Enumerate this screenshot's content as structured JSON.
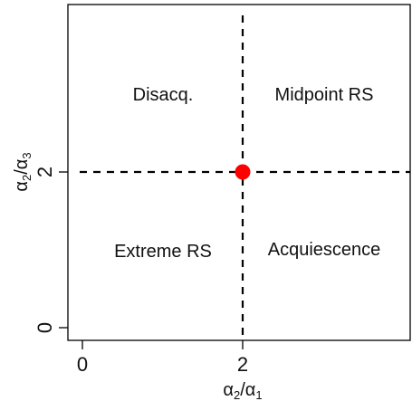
{
  "diagram": {
    "x_axis": {
      "label_main": "α",
      "label_sub1": "2",
      "label_slash": "/",
      "label_main2": "α",
      "label_sub2": "1",
      "ticks": [
        "0",
        "2"
      ]
    },
    "y_axis": {
      "label_main": "α",
      "label_sub1": "2",
      "label_slash": "/",
      "label_main2": "α",
      "label_sub2": "3",
      "ticks": [
        "0",
        "2"
      ]
    },
    "regions": {
      "top_left": "Disacq.",
      "top_right": "Midpoint RS",
      "bottom_left": "Extreme RS",
      "bottom_right": "Acquiescence"
    },
    "point": {
      "x": 2,
      "y": 2,
      "color": "#ff0000"
    },
    "divider_color": "#000000"
  }
}
